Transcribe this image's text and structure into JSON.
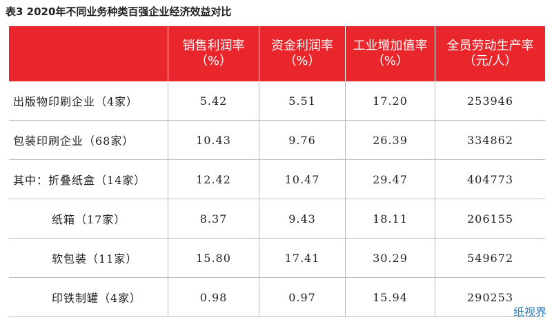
{
  "title": "表3 2020年不同业务种类百强企业经济效益对比",
  "table": {
    "header": [
      [
        "销售利润率",
        "（%）"
      ],
      [
        "资金利润率",
        "（%）"
      ],
      [
        "工业增加值率",
        "（%）"
      ],
      [
        "全员劳动生产率",
        "（元/人）"
      ]
    ],
    "rows": [
      [
        "出版物印刷企业（4家）",
        "5.42",
        "5.51",
        "17.20",
        "253946"
      ],
      [
        "包装印刷企业（68家）",
        "10.43",
        "9.76",
        "26.39",
        "334862"
      ],
      [
        "其中：折叠纸盒（14家）",
        "12.42",
        "10.47",
        "29.47",
        "404773"
      ],
      [
        "纸箱（17家）",
        "8.37",
        "9.43",
        "18.11",
        "206155"
      ],
      [
        "软包装（11家）",
        "15.80",
        "17.41",
        "30.29",
        "549672"
      ],
      [
        "印铁制罐（4家）",
        "0.98",
        "0.97",
        "15.94",
        "290253"
      ]
    ]
  },
  "watermark": "纸视界"
}
